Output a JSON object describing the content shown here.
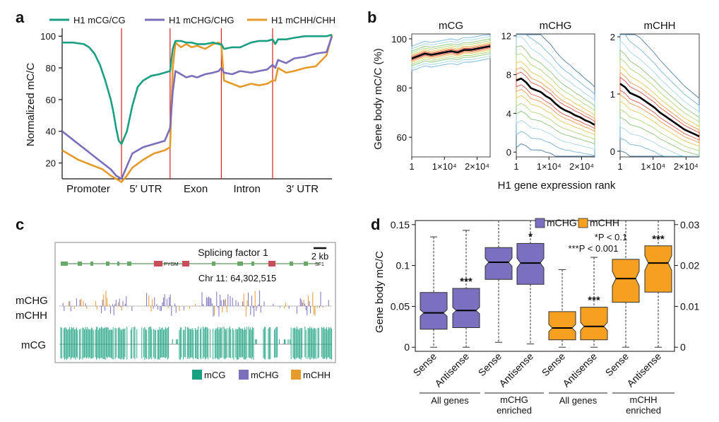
{
  "panel_labels": {
    "a": "a",
    "b": "b",
    "c": "c",
    "d": "d"
  },
  "colors": {
    "mCG": "#1aa080",
    "mCHG": "#7b6fbc",
    "mCHH": "#e59a2a",
    "divider": "#d42020",
    "box_mCHG": "#7b6fbf",
    "box_mCHH": "#f5a11f"
  },
  "chart_data": [
    {
      "panel": "a",
      "type": "line",
      "ylabel": "Normalized mC/C",
      "ylim": [
        10,
        105
      ],
      "yticks": [
        "20",
        "40",
        "60",
        "80",
        "100"
      ],
      "regions": [
        "Promoter",
        "5′ UTR",
        "Exon",
        "Intron",
        "3′ UTR"
      ],
      "x_extent": [
        0,
        100
      ],
      "region_boundaries": [
        22,
        40,
        59,
        78
      ],
      "series": [
        {
          "name": "H1 mCG/CG",
          "x": [
            0,
            4,
            8,
            10,
            12,
            14,
            16,
            18,
            19,
            20,
            21,
            22,
            24,
            26,
            28,
            30,
            33,
            36,
            38,
            40,
            41,
            42,
            44,
            46,
            48,
            50,
            53,
            56,
            58,
            59,
            60,
            63,
            66,
            70,
            73,
            76,
            78,
            79,
            80,
            83,
            86,
            90,
            94,
            98,
            100
          ],
          "values": [
            96,
            96,
            95,
            93,
            89,
            82,
            72,
            60,
            52,
            42,
            34,
            32,
            40,
            56,
            68,
            72,
            75,
            76,
            77,
            78,
            92,
            97,
            97,
            96,
            96,
            95,
            95,
            96,
            95,
            95,
            92,
            93,
            93,
            96,
            97,
            97,
            98,
            95,
            98,
            98,
            99,
            100,
            100,
            100,
            101
          ]
        },
        {
          "name": "H1 mCHG/CHG",
          "x": [
            0,
            3,
            6,
            9,
            12,
            15,
            18,
            20,
            22,
            24,
            26,
            30,
            34,
            38,
            40,
            41,
            42,
            44,
            46,
            48,
            50,
            53,
            56,
            58,
            59,
            60,
            63,
            66,
            70,
            73,
            76,
            78,
            79,
            80,
            83,
            86,
            90,
            94,
            98,
            100
          ],
          "values": [
            40,
            36,
            32,
            28,
            24,
            20,
            16,
            12,
            10,
            18,
            26,
            30,
            32,
            34,
            42,
            65,
            78,
            76,
            74,
            75,
            74,
            76,
            77,
            78,
            80,
            77,
            76,
            78,
            77,
            78,
            79,
            82,
            80,
            85,
            83,
            86,
            87,
            89,
            90,
            100
          ]
        },
        {
          "name": "H1 mCHH/CHH",
          "x": [
            0,
            3,
            6,
            9,
            12,
            15,
            18,
            20,
            22,
            24,
            26,
            30,
            34,
            38,
            40,
            41,
            42,
            44,
            46,
            48,
            50,
            53,
            56,
            58,
            59,
            60,
            63,
            66,
            70,
            73,
            76,
            78,
            79,
            80,
            83,
            86,
            90,
            94,
            98,
            100
          ],
          "values": [
            28,
            25,
            22,
            20,
            18,
            16,
            12,
            10,
            8,
            12,
            17,
            22,
            26,
            28,
            30,
            80,
            96,
            93,
            95,
            93,
            94,
            92,
            95,
            96,
            94,
            72,
            70,
            68,
            70,
            69,
            70,
            72,
            72,
            80,
            77,
            78,
            80,
            81,
            88,
            101
          ]
        }
      ]
    },
    {
      "panel": "b",
      "type": "line",
      "xlabel": "H1 gene expression rank",
      "ylabel": "Gene body mC/C (%)",
      "xticks": [
        "1",
        "1×10⁴",
        "2×10⁴"
      ],
      "x_range": [
        1,
        24000
      ],
      "subplots": [
        {
          "title": "mCG",
          "ylim": [
            52,
            102
          ],
          "yticks": [
            "60",
            "80",
            "100"
          ],
          "x": [
            1,
            2000,
            4000,
            6000,
            8000,
            10000,
            12000,
            14000,
            16000,
            18000,
            20000,
            22000,
            24000
          ],
          "values": [
            92,
            93,
            94,
            93.5,
            94,
            94.5,
            95,
            94.5,
            95.5,
            95.5,
            96,
            96.5,
            97
          ]
        },
        {
          "title": "mCHG",
          "ylim": [
            -0.5,
            12.2
          ],
          "yticks": [
            "0",
            "4",
            "8",
            "12"
          ],
          "x": [
            1,
            1500,
            3000,
            4500,
            6000,
            7500,
            9000,
            10500,
            12000,
            13500,
            15000,
            16500,
            18000,
            19500,
            21000,
            22500,
            24000
          ],
          "values": [
            7.4,
            7.6,
            7.2,
            6.6,
            6.4,
            6.2,
            5.8,
            5.5,
            5.0,
            4.6,
            4.3,
            4.1,
            3.8,
            3.6,
            3.3,
            3.1,
            2.8
          ]
        },
        {
          "title": "mCHH",
          "ylim": [
            -0.1,
            2.05
          ],
          "yticks": [
            "0",
            "1",
            "2"
          ],
          "x": [
            1,
            1500,
            3000,
            4500,
            6000,
            7500,
            9000,
            10500,
            12000,
            13500,
            15000,
            16500,
            18000,
            19500,
            21000,
            22500,
            24000
          ],
          "values": [
            1.18,
            1.12,
            1.02,
            0.98,
            0.94,
            0.88,
            0.82,
            0.76,
            0.68,
            0.62,
            0.56,
            0.5,
            0.44,
            0.38,
            0.34,
            0.3,
            0.26
          ]
        }
      ]
    },
    {
      "panel": "c",
      "type": "other",
      "title": "Splicing factor 1",
      "scale_bar": "2 kb",
      "position": "Chr 11: 64,302,515",
      "genes": [
        "PYGM",
        "SF1"
      ],
      "track_labels": [
        "mCHG",
        "mCHH",
        "mCG"
      ],
      "legend": [
        "mCG",
        "mCHG",
        "mCHH"
      ]
    },
    {
      "panel": "d",
      "type": "box",
      "ylabel": "Gene body mC/C",
      "left_ylim": [
        -0.005,
        0.155
      ],
      "left_yticks": [
        "0",
        "0.05",
        "0.1",
        "0.15"
      ],
      "right_ylim": [
        -0.001,
        0.031
      ],
      "right_yticks": [
        "0",
        "0.01",
        "0.02",
        "0.03"
      ],
      "legend": [
        "mCHG",
        "mCHH"
      ],
      "significance_note": [
        "*P < 0.1",
        "***P < 0.001"
      ],
      "groups": [
        "All genes",
        "mCHG enriched",
        "All genes",
        "mCHH enriched"
      ],
      "boxes": [
        {
          "label": "Sense",
          "group": "All genes",
          "series": "mCHG",
          "axis": "left",
          "min": 0.0,
          "q1": 0.022,
          "median": 0.042,
          "q3": 0.067,
          "max": 0.135,
          "notch_half": 0.004,
          "sig": ""
        },
        {
          "label": "Antisense",
          "group": "All genes",
          "series": "mCHG",
          "axis": "left",
          "min": 0.0,
          "q1": 0.024,
          "median": 0.045,
          "q3": 0.072,
          "max": 0.143,
          "notch_half": 0.004,
          "sig": "***"
        },
        {
          "label": "Sense",
          "group": "mCHG enriched",
          "series": "mCHG",
          "axis": "left",
          "min": 0.006,
          "q1": 0.083,
          "median": 0.104,
          "q3": 0.122,
          "max": 0.155,
          "notch_half": 0.005,
          "sig": ""
        },
        {
          "label": "Antisense",
          "group": "mCHG enriched",
          "series": "mCHG",
          "axis": "left",
          "min": 0.004,
          "q1": 0.077,
          "median": 0.103,
          "q3": 0.127,
          "max": 0.155,
          "notch_half": 0.006,
          "sig": "*"
        },
        {
          "label": "Sense",
          "group": "All genes",
          "series": "mCHH",
          "axis": "right",
          "min": 0.0,
          "q1": 0.0018,
          "median": 0.0047,
          "q3": 0.0087,
          "max": 0.019,
          "notch_half": 0.0009,
          "sig": ""
        },
        {
          "label": "Antisense",
          "group": "All genes",
          "series": "mCHH",
          "axis": "right",
          "min": 0.0,
          "q1": 0.0018,
          "median": 0.0051,
          "q3": 0.0098,
          "max": 0.022,
          "notch_half": 0.001,
          "sig": "***"
        },
        {
          "label": "Sense",
          "group": "mCHH enriched",
          "series": "mCHH",
          "axis": "right",
          "min": 0.0,
          "q1": 0.011,
          "median": 0.0168,
          "q3": 0.0215,
          "max": 0.031,
          "notch_half": 0.0018,
          "sig": ""
        },
        {
          "label": "Antisense",
          "group": "mCHH enriched",
          "series": "mCHH",
          "axis": "right",
          "min": 0.0,
          "q1": 0.0135,
          "median": 0.0206,
          "q3": 0.0248,
          "max": 0.031,
          "notch_half": 0.0018,
          "sig": "***"
        }
      ]
    }
  ]
}
